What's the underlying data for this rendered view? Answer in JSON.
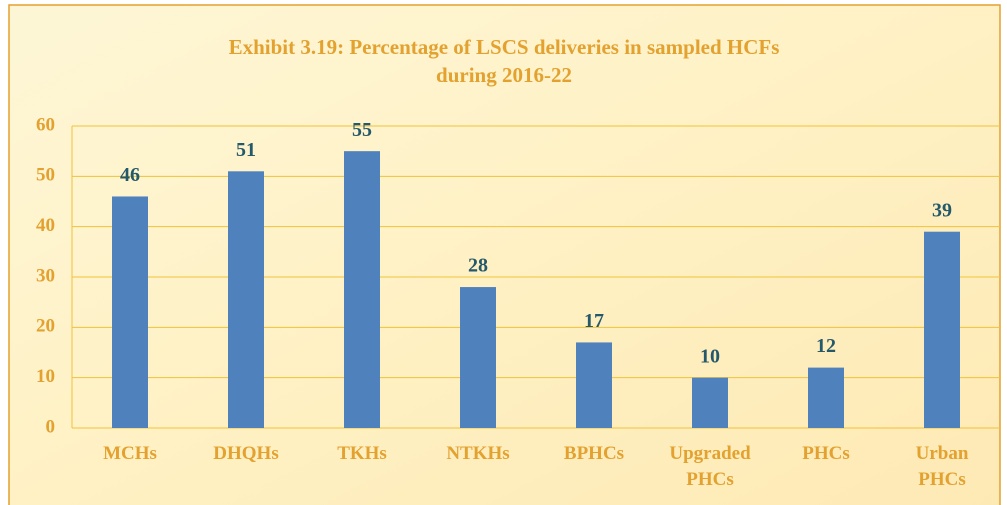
{
  "chart_data": {
    "type": "bar",
    "title": "Exhibit 3.19: Percentage of LSCS deliveries in sampled HCFs",
    "subtitle": "during 2016-22",
    "categories": [
      "MCHs",
      "DHQHs",
      "TKHs",
      "NTKHs",
      "BPHCs",
      "Upgraded PHCs",
      "PHCs",
      "Urban PHCs"
    ],
    "values": [
      46,
      51,
      55,
      28,
      17,
      10,
      12,
      39
    ],
    "color": "#4f81bd",
    "ylim": [
      0,
      60
    ],
    "yticks": [
      0,
      10,
      20,
      30,
      40,
      50,
      60
    ],
    "grid": true
  }
}
